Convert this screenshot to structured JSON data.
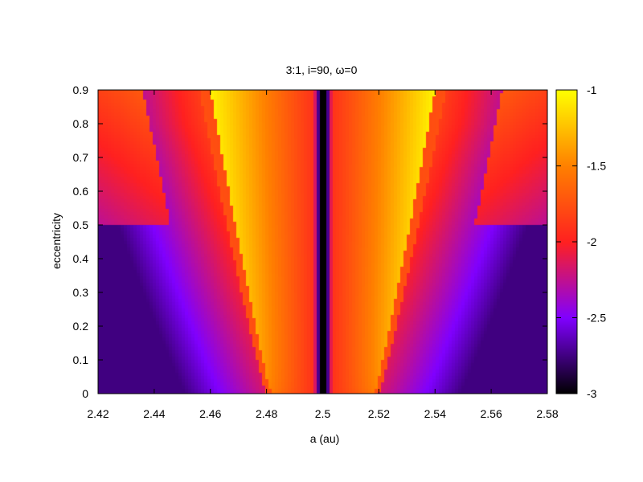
{
  "chart_data": {
    "type": "heatmap",
    "title": "3:1, i=90, ω=0",
    "xlabel": "a (au)",
    "ylabel": "eccentricity",
    "xlim": [
      2.42,
      2.58
    ],
    "ylim": [
      0,
      0.9
    ],
    "x_ticks": [
      "2.42",
      "2.44",
      "2.46",
      "2.48",
      "2.5",
      "2.52",
      "2.54",
      "2.56",
      "2.58"
    ],
    "y_ticks": [
      "0",
      "0.1",
      "0.2",
      "0.3",
      "0.4",
      "0.5",
      "0.6",
      "0.7",
      "0.8",
      "0.9"
    ],
    "colorbar": {
      "range": [
        -3,
        -1
      ],
      "ticks": [
        "-3",
        "-2.5",
        "-2",
        "-1.5",
        "-1"
      ],
      "palette": [
        "#000000",
        "#8000ff",
        "#ff2020",
        "#ff8000",
        "#ffff00"
      ]
    },
    "features": {
      "resonance_center_a": 2.5,
      "boundary_points_a_at_e0": [
        2.48,
        2.52
      ],
      "boundary_points_a_at_e09": [
        2.456,
        2.544
      ],
      "min_value": -2.9,
      "max_value": -1.0
    }
  }
}
